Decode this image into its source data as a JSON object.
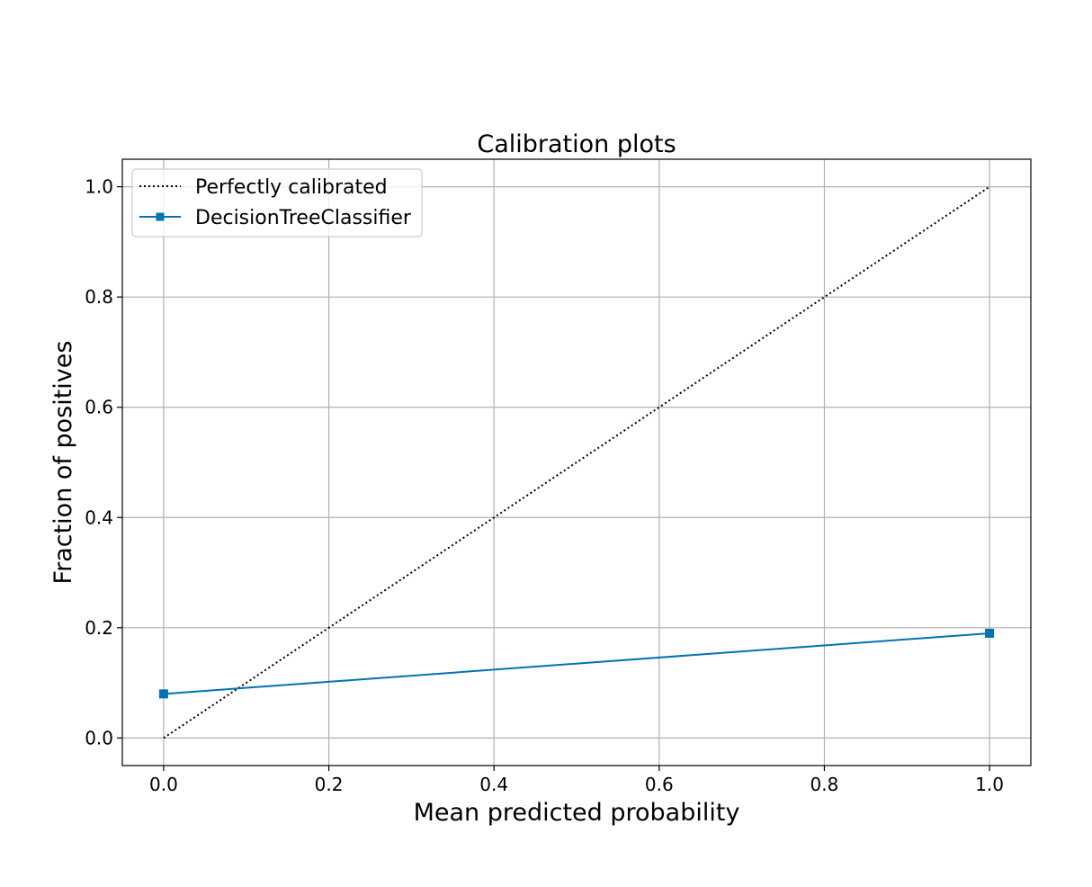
{
  "chart_data": {
    "type": "line",
    "title": "Calibration plots",
    "xlabel": "Mean predicted probability",
    "ylabel": "Fraction of positives",
    "xlim": [
      -0.05,
      1.05
    ],
    "ylim": [
      -0.05,
      1.05
    ],
    "x_ticks": [
      0.0,
      0.2,
      0.4,
      0.6,
      0.8,
      1.0
    ],
    "y_ticks": [
      0.0,
      0.2,
      0.4,
      0.6,
      0.8,
      1.0
    ],
    "x_tick_labels": [
      "0.0",
      "0.2",
      "0.4",
      "0.6",
      "0.8",
      "1.0"
    ],
    "y_tick_labels": [
      "0.0",
      "0.2",
      "0.4",
      "0.6",
      "0.8",
      "1.0"
    ],
    "grid": true,
    "legend_position": "top-left",
    "series": [
      {
        "name": "Perfectly calibrated",
        "x": [
          0.0,
          1.0
        ],
        "y": [
          0.0,
          1.0
        ],
        "color": "#000000",
        "line_style": "dotted",
        "marker": "none"
      },
      {
        "name": "DecisionTreeClassifier",
        "x": [
          0.0,
          1.0
        ],
        "y": [
          0.08,
          0.19
        ],
        "color": "#0173b2",
        "line_style": "solid",
        "marker": "square"
      }
    ]
  }
}
